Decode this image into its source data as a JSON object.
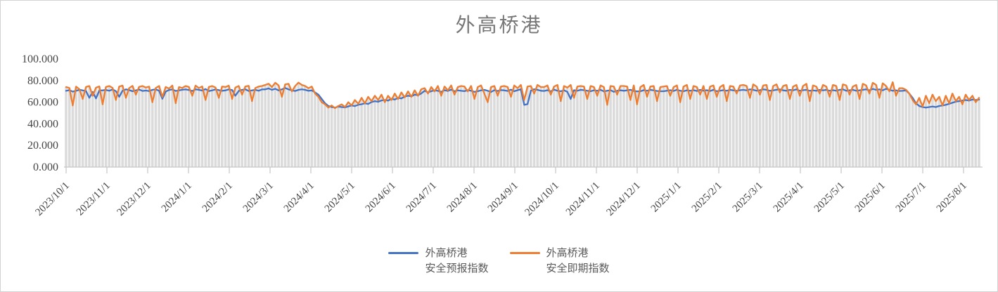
{
  "chart": {
    "title": "外高桥港"
  },
  "legend": {
    "items": [
      {
        "line1": "外高桥港",
        "line2": "安全预报指数",
        "color": "#4472C4"
      },
      {
        "line1": "外高桥港",
        "line2": "安全即期指数",
        "color": "#ED7D31"
      }
    ]
  },
  "chart_data": {
    "type": "line",
    "title": "外高桥港",
    "xlabel": "",
    "ylabel": "",
    "ylim": [
      0,
      100
    ],
    "grid": false,
    "legend_position": "bottom",
    "y_tick_labels": [
      "0.000",
      "20.000",
      "40.000",
      "60.000",
      "80.000",
      "100.000"
    ],
    "x_tick_labels": [
      "2023/10/1",
      "2023/11/1",
      "2023/12/1",
      "2024/1/1",
      "2024/2/1",
      "2024/3/1",
      "2024/4/1",
      "2024/5/1",
      "2024/6/1",
      "2024/7/1",
      "2024/8/1",
      "2024/9/1",
      "2024/10/1",
      "2024/11/1",
      "2024/12/1",
      "2025/1/1",
      "2025/2/1",
      "2025/3/1",
      "2025/4/1",
      "2025/5/1",
      "2025/6/1",
      "2025/7/1",
      "2025/8/1"
    ],
    "points_per_month": 12,
    "background_columns_color": "#DBDBDB",
    "background_columns_rule": "gray daily columns rise to the max of the two line series at each point",
    "axis_color": "#C6C6C6",
    "tick_label_color": "#444444",
    "series": [
      {
        "name": "外高桥港 安全预报指数",
        "color": "#4472C4",
        "values": [
          70.5,
          71.2,
          69.8,
          70.5,
          71.5,
          71.0,
          70.3,
          64.0,
          69.5,
          63.5,
          70.8,
          71.0,
          71.3,
          70.6,
          71.8,
          70.2,
          65.0,
          70.6,
          71.9,
          71.2,
          70.1,
          70.9,
          71.7,
          70.4,
          70.8,
          70.3,
          71.4,
          71.9,
          70.6,
          63.2,
          69.8,
          71.3,
          71.8,
          70.4,
          70.9,
          71.5,
          71.8,
          71.3,
          70.4,
          71.9,
          71.4,
          70.8,
          72.2,
          70.3,
          70.9,
          71.8,
          71.2,
          70.5,
          70.9,
          71.8,
          71.3,
          66.0,
          70.4,
          71.4,
          71.9,
          70.4,
          70.9,
          71.4,
          70.6,
          71.8,
          71.9,
          72.8,
          71.4,
          72.4,
          70.9,
          71.9,
          73.2,
          71.9,
          70.9,
          70.4,
          71.4,
          71.9,
          71.4,
          70.5,
          70.9,
          69.0,
          67.0,
          63.0,
          59.0,
          56.5,
          55.5,
          55.0,
          56.0,
          55.5,
          55.2,
          56.1,
          57.0,
          56.4,
          57.6,
          58.1,
          59.0,
          58.4,
          60.1,
          61.0,
          60.4,
          61.6,
          62.0,
          61.5,
          63.1,
          62.4,
          64.0,
          63.5,
          65.1,
          66.0,
          65.4,
          67.0,
          66.4,
          68.1,
          70.6,
          69.1,
          70.2,
          71.0,
          70.5,
          69.6,
          71.1,
          70.4,
          71.6,
          70.1,
          71.0,
          70.5,
          70.2,
          71.1,
          70.6,
          69.6,
          70.1,
          71.0,
          71.4,
          70.6,
          69.5,
          71.1,
          70.4,
          71.2,
          71.0,
          70.4,
          71.6,
          70.1,
          71.1,
          72.0,
          57.5,
          58.2,
          70.6,
          72.0,
          71.4,
          70.6,
          70.4,
          71.1,
          70.0,
          71.6,
          70.6,
          70.1,
          71.0,
          69.6,
          63.0,
          71.1,
          70.6,
          71.4,
          71.1,
          70.6,
          70.1,
          71.0,
          70.6,
          71.4,
          70.0,
          70.6,
          71.1,
          69.6,
          70.6,
          71.0,
          70.6,
          71.0,
          71.5,
          70.4,
          70.0,
          70.1,
          71.1,
          70.6,
          71.4,
          71.0,
          70.4,
          70.1,
          70.1,
          70.6,
          71.1,
          70.4,
          71.5,
          70.6,
          70.1,
          71.0,
          70.6,
          71.1,
          70.4,
          71.4,
          70.6,
          71.1,
          70.4,
          71.4,
          70.1,
          70.6,
          71.1,
          70.6,
          71.4,
          71.0,
          70.5,
          71.1,
          71.4,
          71.0,
          71.9,
          71.4,
          70.6,
          71.1,
          71.9,
          71.4,
          70.6,
          71.0,
          71.5,
          71.9,
          71.0,
          70.6,
          71.4,
          71.0,
          71.9,
          70.6,
          71.1,
          71.4,
          70.6,
          71.0,
          70.5,
          71.4,
          71.0,
          71.4,
          70.6,
          71.1,
          70.6,
          71.4,
          71.9,
          70.6,
          71.0,
          71.4,
          70.6,
          71.0,
          71.4,
          71.9,
          71.0,
          72.3,
          71.4,
          71.9,
          71.0,
          72.4,
          71.4,
          70.6,
          71.0,
          70.4,
          70.5,
          70.9,
          68.0,
          64.0,
          59.0,
          56.5,
          55.5,
          55.0,
          55.5,
          56.0,
          55.5,
          56.5,
          57.0,
          57.5,
          58.5,
          59.5,
          60.5,
          61.0,
          61.5,
          62.0,
          61.5,
          62.5,
          62.0,
          62.4
        ]
      },
      {
        "name": "外高桥港 安全即期指数",
        "color": "#ED7D31",
        "values": [
          74.0,
          73.1,
          57.0,
          74.4,
          72.1,
          63.0,
          74.1,
          75.0,
          66.0,
          73.5,
          74.6,
          58.0,
          74.1,
          75.0,
          73.2,
          62.0,
          74.5,
          75.4,
          64.0,
          73.1,
          75.1,
          67.0,
          74.2,
          75.0,
          73.6,
          74.5,
          60.0,
          73.1,
          75.0,
          65.0,
          74.1,
          72.6,
          75.4,
          59.0,
          74.0,
          73.2,
          75.0,
          74.1,
          66.0,
          75.4,
          73.1,
          74.6,
          62.0,
          74.1,
          75.0,
          73.6,
          64.0,
          74.5,
          74.1,
          75.4,
          63.0,
          73.6,
          75.0,
          67.0,
          74.6,
          75.1,
          61.0,
          73.1,
          74.5,
          75.0,
          76.0,
          77.1,
          74.0,
          78.0,
          75.5,
          65.0,
          76.5,
          77.0,
          70.0,
          75.0,
          78.1,
          76.0,
          75.0,
          73.0,
          74.5,
          68.0,
          65.0,
          60.0,
          58.0,
          55.0,
          57.0,
          54.5,
          56.5,
          58.0,
          55.5,
          60.0,
          57.0,
          62.0,
          58.5,
          64.0,
          59.0,
          65.0,
          61.0,
          66.0,
          62.0,
          67.0,
          60.0,
          66.0,
          62.0,
          68.0,
          63.0,
          69.0,
          64.5,
          70.0,
          65.0,
          71.0,
          66.0,
          72.0,
          73.0,
          68.0,
          74.0,
          70.0,
          75.0,
          66.0,
          74.5,
          71.0,
          75.5,
          67.0,
          74.0,
          75.0,
          74.5,
          70.0,
          75.0,
          63.0,
          74.0,
          75.5,
          68.0,
          60.0,
          74.0,
          75.0,
          66.0,
          74.5,
          75.0,
          74.0,
          65.0,
          75.5,
          73.0,
          76.0,
          62.0,
          74.5,
          75.0,
          68.0,
          76.0,
          74.0,
          74.0,
          75.5,
          67.0,
          74.5,
          76.0,
          61.0,
          75.0,
          73.5,
          76.0,
          64.0,
          74.5,
          75.0,
          74.5,
          63.0,
          75.0,
          74.0,
          66.0,
          75.5,
          74.0,
          57.5,
          75.0,
          74.5,
          67.0,
          75.0,
          75.0,
          74.5,
          62.0,
          75.5,
          58.0,
          74.0,
          76.0,
          65.0,
          74.5,
          75.0,
          61.0,
          74.0,
          74.5,
          75.0,
          66.0,
          74.0,
          75.5,
          60.0,
          74.5,
          76.0,
          63.0,
          75.0,
          74.0,
          67.0,
          75.0,
          63.0,
          74.5,
          75.5,
          65.0,
          74.0,
          76.0,
          61.0,
          75.0,
          74.5,
          68.0,
          75.5,
          76.0,
          75.0,
          64.0,
          76.5,
          74.5,
          67.0,
          75.5,
          76.0,
          62.0,
          75.0,
          76.5,
          69.0,
          75.0,
          76.0,
          63.0,
          74.5,
          76.0,
          66.0,
          75.0,
          77.0,
          61.0,
          75.5,
          74.5,
          68.0,
          76.0,
          74.5,
          65.0,
          76.0,
          75.0,
          62.0,
          76.5,
          75.5,
          67.0,
          74.5,
          76.0,
          63.0,
          77.0,
          75.5,
          68.0,
          78.0,
          76.0,
          64.0,
          77.5,
          75.0,
          70.0,
          78.5,
          66.0,
          73.0,
          73.0,
          71.5,
          68.0,
          62.0,
          58.0,
          64.0,
          56.0,
          66.0,
          59.0,
          67.0,
          61.0,
          65.0,
          57.0,
          66.0,
          59.0,
          68.0,
          61.0,
          65.0,
          58.0,
          67.0,
          62.0,
          66.0,
          60.0,
          64.0
        ]
      }
    ]
  }
}
